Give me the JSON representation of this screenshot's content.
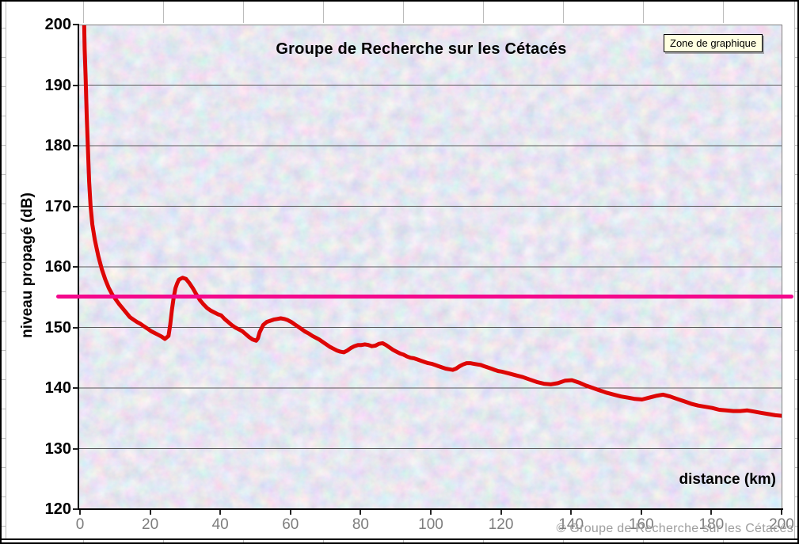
{
  "chart_data": {
    "type": "line",
    "title": "Groupe de Recherche sur les Cétacés",
    "xlabel": "distance (km)",
    "ylabel": "niveau propagé (dB)",
    "xlim": [
      0,
      200
    ],
    "ylim": [
      120,
      200
    ],
    "x_ticks": [
      0,
      20,
      40,
      60,
      80,
      100,
      120,
      140,
      160,
      180,
      200
    ],
    "y_ticks": [
      200,
      190,
      180,
      170,
      160,
      150,
      140,
      130,
      120
    ],
    "grid": "horizontal-only",
    "legend_position": "none",
    "plot_background": "mottled light-blue and pink texture",
    "series": [
      {
        "name": "niveau propagé",
        "type": "line",
        "points": [
          [
            0.9,
            202
          ],
          [
            1.1,
            196
          ],
          [
            1.4,
            191
          ],
          [
            1.7,
            185
          ],
          [
            2.0,
            180
          ],
          [
            2.4,
            174
          ],
          [
            2.8,
            170
          ],
          [
            3.3,
            167
          ],
          [
            4,
            164.5
          ],
          [
            5,
            161.8
          ],
          [
            6,
            159.6
          ],
          [
            7,
            157.9
          ],
          [
            8,
            156.5
          ],
          [
            9,
            155.4
          ],
          [
            10,
            154.6
          ],
          [
            11,
            153.8
          ],
          [
            12,
            153.1
          ],
          [
            13,
            152.4
          ],
          [
            14,
            151.7
          ],
          [
            15,
            151.3
          ],
          [
            16,
            150.9
          ],
          [
            17,
            150.6
          ],
          [
            18,
            150.2
          ],
          [
            19,
            149.8
          ],
          [
            20,
            149.4
          ],
          [
            21,
            149.1
          ],
          [
            22,
            148.8
          ],
          [
            23,
            148.5
          ],
          [
            24,
            148.1
          ],
          [
            25,
            148.6
          ],
          [
            25.5,
            150.5
          ],
          [
            26,
            153.0
          ],
          [
            26.5,
            155.0
          ],
          [
            27,
            156.5
          ],
          [
            27.5,
            157.3
          ],
          [
            28,
            157.9
          ],
          [
            29,
            158.2
          ],
          [
            30,
            158.0
          ],
          [
            31,
            157.3
          ],
          [
            32,
            156.4
          ],
          [
            33,
            155.4
          ],
          [
            34,
            154.5
          ],
          [
            35,
            153.8
          ],
          [
            36,
            153.2
          ],
          [
            37,
            152.8
          ],
          [
            38,
            152.5
          ],
          [
            39,
            152.2
          ],
          [
            40,
            152.0
          ],
          [
            41,
            151.4
          ],
          [
            42,
            150.9
          ],
          [
            43,
            150.4
          ],
          [
            44,
            150.0
          ],
          [
            45,
            149.7
          ],
          [
            46,
            149.4
          ],
          [
            47,
            148.9
          ],
          [
            48,
            148.4
          ],
          [
            49,
            148.0
          ],
          [
            50,
            147.8
          ],
          [
            50.5,
            148.2
          ],
          [
            51,
            149.2
          ],
          [
            52,
            150.4
          ],
          [
            53,
            150.9
          ],
          [
            54,
            151.1
          ],
          [
            55,
            151.3
          ],
          [
            56,
            151.4
          ],
          [
            57,
            151.5
          ],
          [
            58,
            151.4
          ],
          [
            59,
            151.2
          ],
          [
            60,
            150.9
          ],
          [
            61,
            150.5
          ],
          [
            62,
            150.1
          ],
          [
            63,
            149.7
          ],
          [
            64,
            149.3
          ],
          [
            65,
            149.0
          ],
          [
            66,
            148.6
          ],
          [
            67,
            148.3
          ],
          [
            68,
            148.0
          ],
          [
            69,
            147.6
          ],
          [
            70,
            147.2
          ],
          [
            71,
            146.8
          ],
          [
            72,
            146.5
          ],
          [
            73,
            146.2
          ],
          [
            74,
            146.0
          ],
          [
            75,
            145.9
          ],
          [
            76,
            146.2
          ],
          [
            77,
            146.6
          ],
          [
            78,
            146.9
          ],
          [
            79,
            147.1
          ],
          [
            80,
            147.1
          ],
          [
            81,
            147.2
          ],
          [
            82,
            147.1
          ],
          [
            83,
            146.9
          ],
          [
            84,
            147.0
          ],
          [
            85,
            147.3
          ],
          [
            86,
            147.4
          ],
          [
            87,
            147.1
          ],
          [
            88,
            146.7
          ],
          [
            89,
            146.3
          ],
          [
            90,
            146.0
          ],
          [
            91,
            145.7
          ],
          [
            92,
            145.5
          ],
          [
            93,
            145.2
          ],
          [
            94,
            145.0
          ],
          [
            95,
            144.9
          ],
          [
            96,
            144.7
          ],
          [
            97,
            144.5
          ],
          [
            98,
            144.3
          ],
          [
            99,
            144.1
          ],
          [
            100,
            144.0
          ],
          [
            101,
            143.8
          ],
          [
            102,
            143.6
          ],
          [
            103,
            143.4
          ],
          [
            104,
            143.2
          ],
          [
            105,
            143.1
          ],
          [
            106,
            143.0
          ],
          [
            107,
            143.2
          ],
          [
            108,
            143.6
          ],
          [
            109,
            143.9
          ],
          [
            110,
            144.1
          ],
          [
            111,
            144.1
          ],
          [
            112,
            144.0
          ],
          [
            113,
            143.9
          ],
          [
            114,
            143.8
          ],
          [
            115,
            143.6
          ],
          [
            116,
            143.4
          ],
          [
            117,
            143.2
          ],
          [
            118,
            143.0
          ],
          [
            119,
            142.8
          ],
          [
            120,
            142.7
          ],
          [
            122,
            142.4
          ],
          [
            124,
            142.1
          ],
          [
            126,
            141.8
          ],
          [
            128,
            141.4
          ],
          [
            130,
            141.0
          ],
          [
            132,
            140.7
          ],
          [
            134,
            140.6
          ],
          [
            136,
            140.8
          ],
          [
            138,
            141.2
          ],
          [
            140,
            141.3
          ],
          [
            142,
            140.9
          ],
          [
            144,
            140.4
          ],
          [
            146,
            140.0
          ],
          [
            148,
            139.6
          ],
          [
            150,
            139.2
          ],
          [
            152,
            138.9
          ],
          [
            154,
            138.6
          ],
          [
            156,
            138.4
          ],
          [
            158,
            138.2
          ],
          [
            160,
            138.1
          ],
          [
            162,
            138.4
          ],
          [
            164,
            138.7
          ],
          [
            166,
            138.9
          ],
          [
            168,
            138.6
          ],
          [
            170,
            138.2
          ],
          [
            172,
            137.8
          ],
          [
            174,
            137.4
          ],
          [
            176,
            137.1
          ],
          [
            178,
            136.9
          ],
          [
            180,
            136.7
          ],
          [
            182,
            136.4
          ],
          [
            184,
            136.3
          ],
          [
            186,
            136.2
          ],
          [
            188,
            136.2
          ],
          [
            190,
            136.3
          ],
          [
            192,
            136.1
          ],
          [
            194,
            135.9
          ],
          [
            196,
            135.7
          ],
          [
            198,
            135.5
          ],
          [
            200,
            135.4
          ]
        ]
      },
      {
        "name": "seuil horizontal",
        "type": "hline",
        "value": 155
      }
    ]
  },
  "tooltip": {
    "label": "Zone de graphique"
  },
  "watermark": {
    "text": "© Groupe de Recherche sur les Cétacés"
  },
  "colors": {
    "curve": "#dd0606",
    "threshold_line": "#f4088c",
    "plot_bg_base": "#c9d6ef",
    "grid": "#5a5a5a",
    "axis": "#000000",
    "x_tick_label": "#7d7d7d",
    "y_tick_label": "#000000",
    "tooltip_bg": "#ffffe1",
    "watermark": "#9e9e9e"
  }
}
